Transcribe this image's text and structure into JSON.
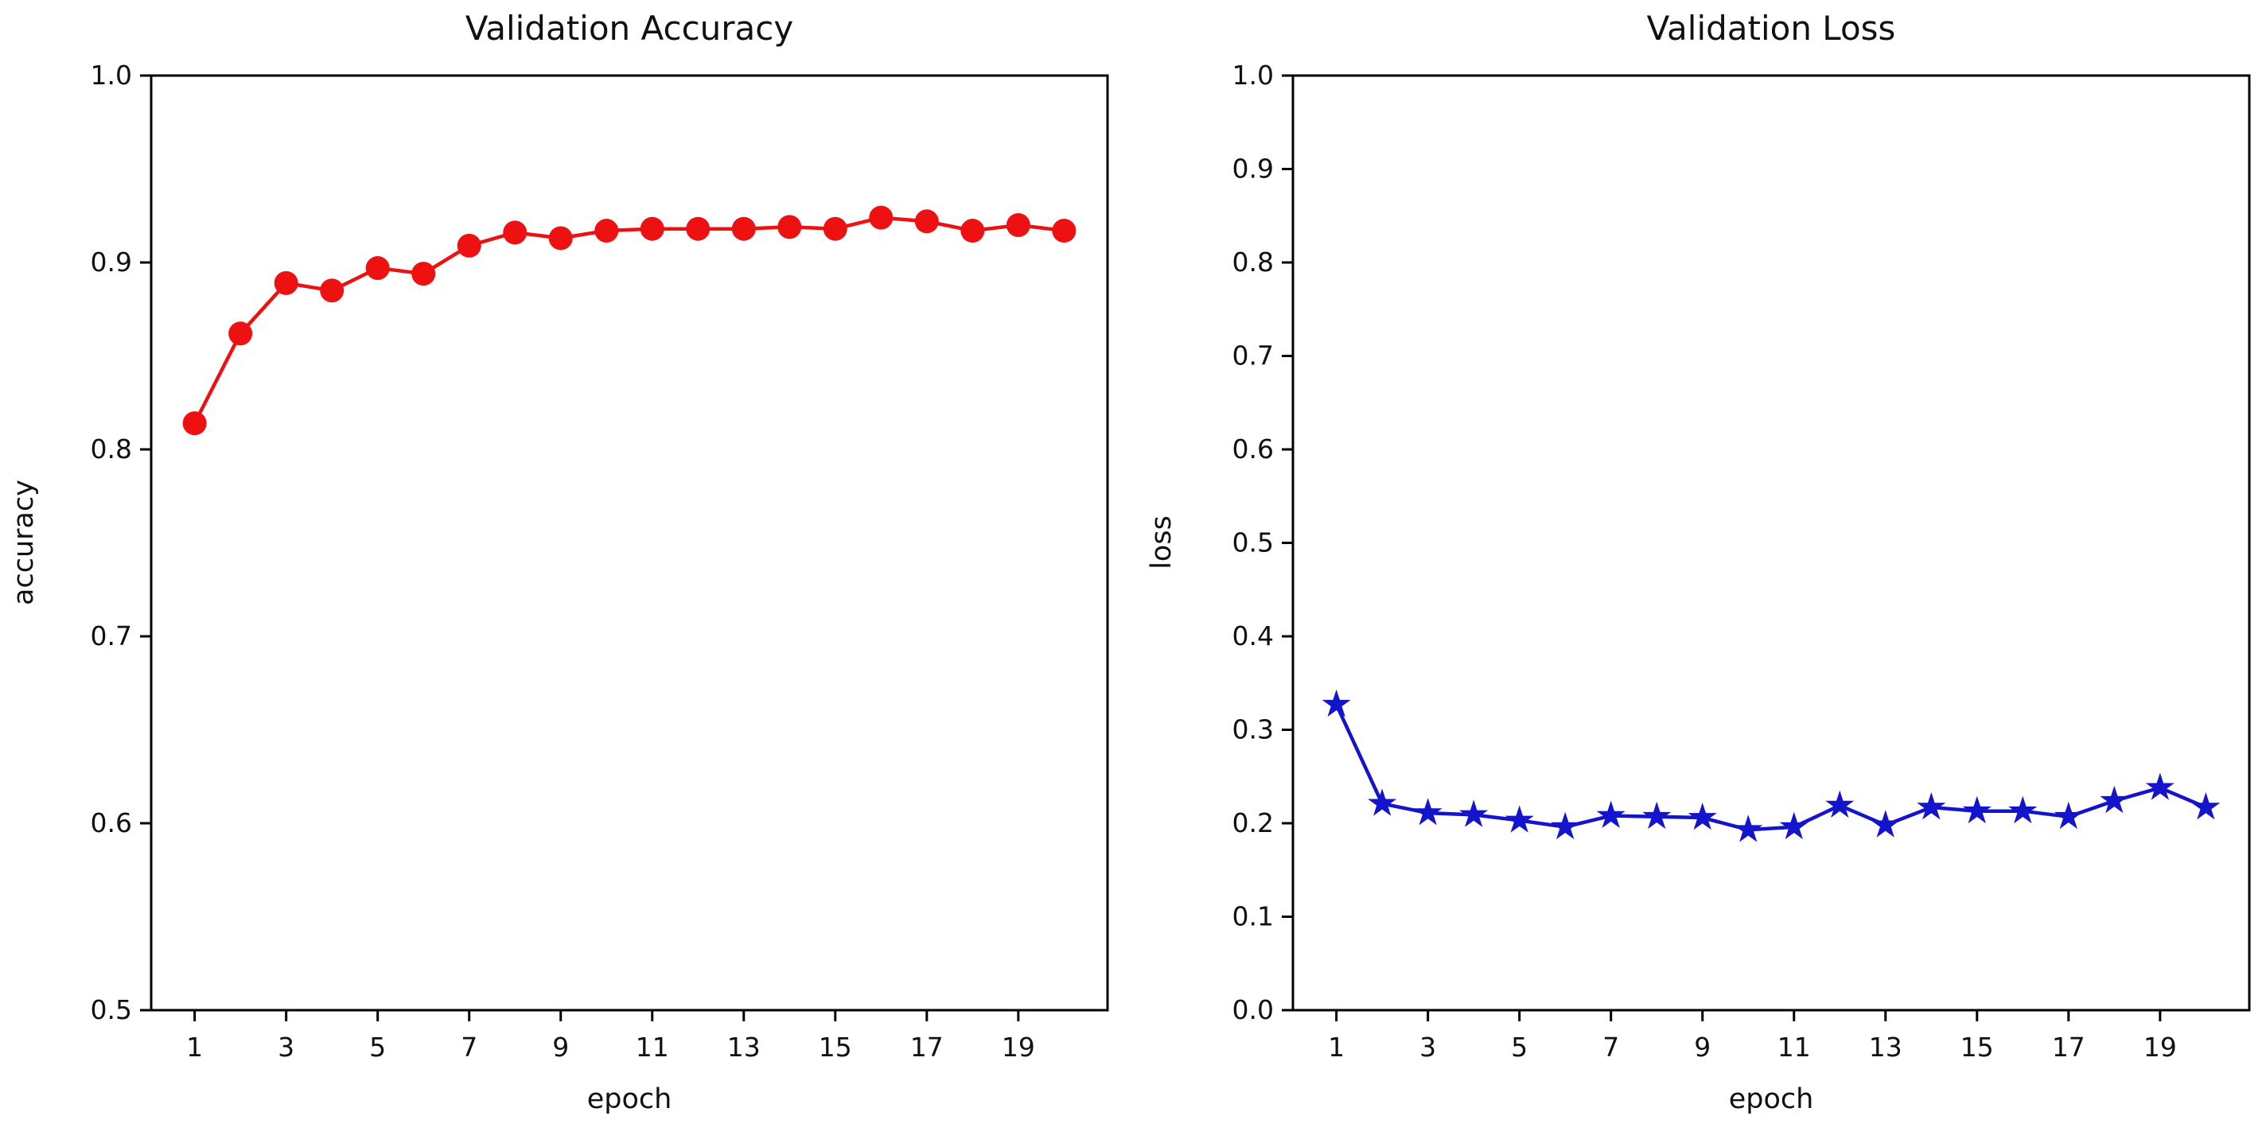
{
  "figure": {
    "background": "#ffffff",
    "text_color": "#111111",
    "spine_color": "#000000"
  },
  "chart_data": [
    {
      "type": "line",
      "title": "Validation Accuracy",
      "xlabel": "epoch",
      "ylabel": "accuracy",
      "xlim": [
        0.05,
        20.95
      ],
      "ylim": [
        0.5,
        1.0
      ],
      "xticks": [
        1,
        3,
        5,
        7,
        9,
        11,
        13,
        15,
        17,
        19
      ],
      "xtick_labels": [
        "1",
        "3",
        "5",
        "7",
        "9",
        "11",
        "13",
        "15",
        "17",
        "19"
      ],
      "yticks": [
        0.5,
        0.6,
        0.7,
        0.8,
        0.9,
        1.0
      ],
      "ytick_labels": [
        "0.5",
        "0.6",
        "0.7",
        "0.8",
        "0.9",
        "1.0"
      ],
      "grid": false,
      "legend_position": "none",
      "x": [
        1,
        2,
        3,
        4,
        5,
        6,
        7,
        8,
        9,
        10,
        11,
        12,
        13,
        14,
        15,
        16,
        17,
        18,
        19,
        20
      ],
      "series": [
        {
          "name": "validation accuracy",
          "color": "#ee1111",
          "marker": "circle",
          "values": [
            0.814,
            0.862,
            0.889,
            0.885,
            0.897,
            0.894,
            0.909,
            0.916,
            0.913,
            0.917,
            0.918,
            0.918,
            0.918,
            0.919,
            0.918,
            0.924,
            0.922,
            0.917,
            0.92,
            0.917
          ]
        }
      ]
    },
    {
      "type": "line",
      "title": "Validation Loss",
      "xlabel": "epoch",
      "ylabel": "loss",
      "xlim": [
        0.05,
        20.95
      ],
      "ylim": [
        0.0,
        1.0
      ],
      "xticks": [
        1,
        3,
        5,
        7,
        9,
        11,
        13,
        15,
        17,
        19
      ],
      "xtick_labels": [
        "1",
        "3",
        "5",
        "7",
        "9",
        "11",
        "13",
        "15",
        "17",
        "19"
      ],
      "yticks": [
        0.0,
        0.1,
        0.2,
        0.3,
        0.4,
        0.5,
        0.6,
        0.7,
        0.8,
        0.9,
        1.0
      ],
      "ytick_labels": [
        "0.0",
        "0.1",
        "0.2",
        "0.3",
        "0.4",
        "0.5",
        "0.6",
        "0.7",
        "0.8",
        "0.9",
        "1.0"
      ],
      "grid": false,
      "legend_position": "none",
      "x": [
        1,
        2,
        3,
        4,
        5,
        6,
        7,
        8,
        9,
        10,
        11,
        12,
        13,
        14,
        15,
        16,
        17,
        18,
        19,
        20
      ],
      "series": [
        {
          "name": "validation loss",
          "color": "#1414cd",
          "marker": "star",
          "values": [
            0.327,
            0.221,
            0.211,
            0.209,
            0.203,
            0.196,
            0.208,
            0.207,
            0.206,
            0.193,
            0.196,
            0.219,
            0.198,
            0.217,
            0.213,
            0.213,
            0.207,
            0.224,
            0.238,
            0.217
          ]
        }
      ]
    }
  ]
}
